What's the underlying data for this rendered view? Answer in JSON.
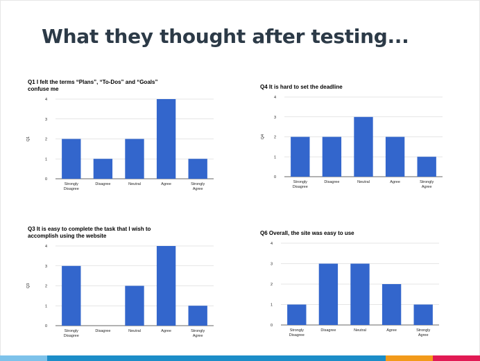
{
  "slide": {
    "title": "What they thought after testing..."
  },
  "colors": {
    "bar": "#3366cc",
    "grid": "#cccccc",
    "axis": "#333333",
    "text": "#222222",
    "footer": [
      "#7dc2ea",
      "#1b8dc8",
      "#f29a1a",
      "#e11a54"
    ]
  },
  "chart_data": [
    {
      "type": "bar",
      "title": "Q1 I felt the terms “Plans”, “To-Dos” and “Goals” confuse me",
      "ylabel": "Q1",
      "categories": [
        "Strongly Disagree",
        "Disagree",
        "Neutral",
        "Agree",
        "Strongly Agree"
      ],
      "values": [
        2,
        1,
        2,
        4,
        1
      ],
      "ylim": [
        0,
        4
      ],
      "yticks": [
        0,
        1,
        2,
        3,
        4
      ],
      "grid": true,
      "legend": "none"
    },
    {
      "type": "bar",
      "title": "Q4 It is hard to set the deadline",
      "ylabel": "Q4",
      "categories": [
        "Strongly Disagree",
        "Disagree",
        "Neutral",
        "Agree",
        "Strongly Agree"
      ],
      "values": [
        2,
        2,
        3,
        2,
        1
      ],
      "ylim": [
        0,
        4
      ],
      "yticks": [
        0,
        1,
        2,
        3,
        4
      ],
      "grid": true,
      "legend": "none"
    },
    {
      "type": "bar",
      "title": "Q3 It is easy to complete the task that I wish to accomplish using the website",
      "ylabel": "Q3",
      "categories": [
        "Strongly Disagree",
        "Disagree",
        "Neutral",
        "Agree",
        "Strongly Agree"
      ],
      "values": [
        3,
        0,
        2,
        4,
        1
      ],
      "ylim": [
        0,
        4
      ],
      "yticks": [
        0,
        1,
        2,
        3,
        4
      ],
      "grid": true,
      "legend": "none"
    },
    {
      "type": "bar",
      "title": "Q6 Overall, the site was easy to use",
      "ylabel": "",
      "categories": [
        "Strongly Disagree",
        "Disagree",
        "Neutral",
        "Agree",
        "Strongly Agree"
      ],
      "values": [
        1,
        3,
        3,
        2,
        1
      ],
      "ylim": [
        0,
        4
      ],
      "yticks": [
        0,
        1,
        2,
        3,
        4
      ],
      "grid": true,
      "legend": "none"
    }
  ]
}
